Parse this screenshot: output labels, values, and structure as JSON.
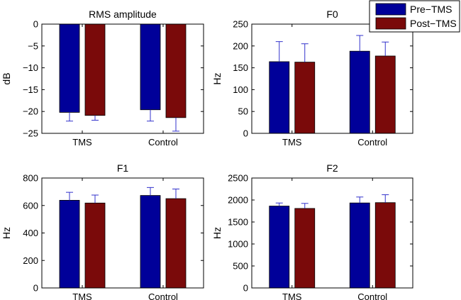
{
  "legend": {
    "items": [
      {
        "label": "Pre−TMS",
        "color": "#000099"
      },
      {
        "label": "Post−TMS",
        "color": "#7a0a0a"
      }
    ]
  },
  "chart_data": [
    {
      "type": "bar",
      "title": "RMS amplitude",
      "xlabel": "",
      "ylabel": "dB",
      "categories": [
        "TMS",
        "Control"
      ],
      "series": [
        {
          "name": "Pre−TMS",
          "values": [
            -20.2,
            -19.6
          ],
          "errors": [
            2.0,
            2.6
          ]
        },
        {
          "name": "Post−TMS",
          "values": [
            -20.9,
            -21.4
          ],
          "errors": [
            1.1,
            3.1
          ]
        }
      ],
      "ylim": [
        -25,
        0
      ],
      "yticks": [
        0,
        -5,
        -10,
        -15,
        -20,
        -25
      ],
      "ytick_labels": [
        "0",
        "−5",
        "−10",
        "−15",
        "−20",
        "−25"
      ]
    },
    {
      "type": "bar",
      "title": "F0",
      "xlabel": "",
      "ylabel": "Hz",
      "categories": [
        "TMS",
        "Control"
      ],
      "series": [
        {
          "name": "Pre−TMS",
          "values": [
            164,
            188
          ],
          "errors": [
            46,
            36
          ]
        },
        {
          "name": "Post−TMS",
          "values": [
            163,
            177
          ],
          "errors": [
            42,
            32
          ]
        }
      ],
      "ylim": [
        0,
        250
      ],
      "yticks": [
        0,
        50,
        100,
        150,
        200,
        250
      ],
      "ytick_labels": [
        "0",
        "50",
        "100",
        "150",
        "200",
        "250"
      ]
    },
    {
      "type": "bar",
      "title": "F1",
      "xlabel": "",
      "ylabel": "Hz",
      "categories": [
        "TMS",
        "Control"
      ],
      "series": [
        {
          "name": "Pre−TMS",
          "values": [
            638,
            673
          ],
          "errors": [
            58,
            58
          ]
        },
        {
          "name": "Post−TMS",
          "values": [
            618,
            650
          ],
          "errors": [
            58,
            70
          ]
        }
      ],
      "ylim": [
        0,
        800
      ],
      "yticks": [
        0,
        200,
        400,
        600,
        800
      ],
      "ytick_labels": [
        "0",
        "200",
        "400",
        "600",
        "800"
      ]
    },
    {
      "type": "bar",
      "title": "F2",
      "xlabel": "",
      "ylabel": "Hz",
      "categories": [
        "TMS",
        "Control"
      ],
      "series": [
        {
          "name": "Pre−TMS",
          "values": [
            1862,
            1933
          ],
          "errors": [
            70,
            135
          ]
        },
        {
          "name": "Post−TMS",
          "values": [
            1808,
            1940
          ],
          "errors": [
            115,
            180
          ]
        }
      ],
      "ylim": [
        0,
        2500
      ],
      "yticks": [
        0,
        500,
        1000,
        1500,
        2000,
        2500
      ],
      "ytick_labels": [
        "0",
        "500",
        "1000",
        "1500",
        "2000",
        "2500"
      ]
    }
  ]
}
